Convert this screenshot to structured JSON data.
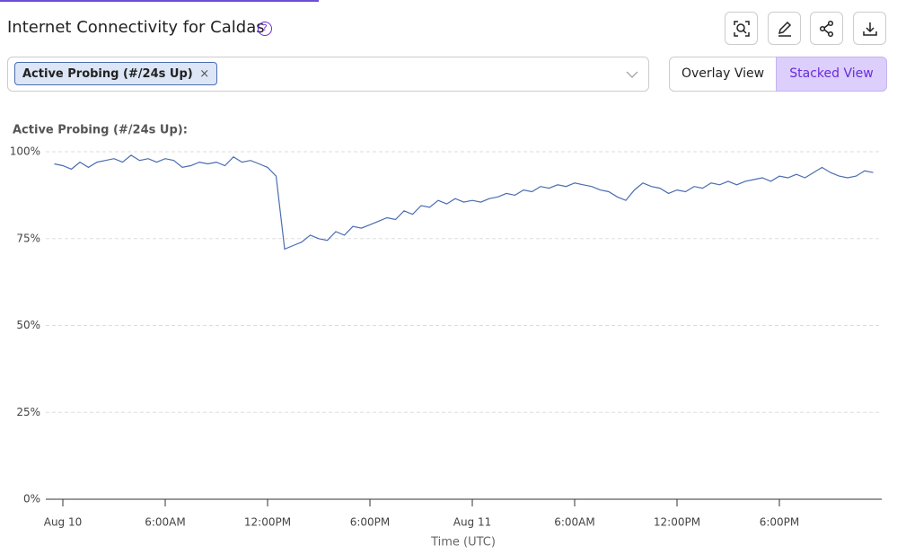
{
  "header": {
    "title": "Internet Connectivity for Caldas",
    "help": "?"
  },
  "filter": {
    "chip": "Active Probing (#/24s Up)",
    "remove": "×"
  },
  "views": [
    "Overlay View",
    "Stacked View"
  ],
  "chart_data": {
    "type": "line",
    "title": "Active Probing (#/24s Up):",
    "x_label": "Time (UTC)",
    "color": "#4a6db0",
    "x": [
      -0.5,
      0,
      0.5,
      1,
      1.5,
      2,
      2.5,
      3,
      3.5,
      4,
      4.5,
      5,
      5.5,
      6,
      6.5,
      7,
      7.5,
      8,
      8.5,
      9,
      9.5,
      10,
      10.5,
      11,
      11.5,
      12,
      12.5,
      13,
      13.5,
      14,
      14.5,
      15,
      15.5,
      16,
      16.5,
      17,
      17.5,
      18,
      18.5,
      19,
      19.5,
      20,
      20.5,
      21,
      21.5,
      22,
      22.5,
      23,
      23.5,
      24,
      24.5,
      25,
      25.5,
      26,
      26.5,
      27,
      27.5,
      28,
      28.5,
      29,
      29.5,
      30,
      30.5,
      31,
      31.5,
      32,
      32.5,
      33,
      33.5,
      34,
      34.5,
      35,
      35.5,
      36,
      36.5,
      37,
      37.5,
      38,
      38.5,
      39,
      39.5,
      40,
      40.5,
      41,
      41.5,
      42,
      42.5,
      43,
      43.5,
      44,
      44.5,
      45,
      45.5,
      46,
      46.5,
      47,
      47.5
    ],
    "values": [
      96.5,
      96,
      95,
      97,
      95.5,
      97,
      97.5,
      98,
      97,
      99,
      97.5,
      98,
      97,
      98,
      97.5,
      95.5,
      96,
      97,
      96.5,
      97,
      96,
      98.5,
      97,
      97.5,
      96.5,
      95.5,
      93,
      72,
      73,
      74,
      76,
      75,
      74.5,
      77,
      76,
      78.5,
      78,
      79,
      80,
      81,
      80.5,
      83,
      82,
      84.5,
      84,
      86,
      85,
      86.5,
      85.5,
      86,
      85.5,
      86.5,
      87,
      88,
      87.5,
      89,
      88.5,
      90,
      89.5,
      90.5,
      90,
      91,
      90.5,
      90,
      89,
      88.5,
      87,
      86,
      89,
      91,
      90,
      89.5,
      88,
      89,
      88.5,
      90,
      89.5,
      91,
      90.5,
      91.5,
      90.5,
      91.5,
      92,
      92.5,
      91.5,
      93,
      92.5,
      93.5,
      92.5,
      94,
      95.5,
      94,
      93,
      92.5,
      93,
      94.5,
      94
    ],
    "xlim": [
      -1,
      48
    ],
    "xticks": [
      {
        "value": 0,
        "label": "Aug 10"
      },
      {
        "value": 6,
        "label": "6:00AM"
      },
      {
        "value": 12,
        "label": "12:00PM"
      },
      {
        "value": 18,
        "label": "6:00PM"
      },
      {
        "value": 24,
        "label": "Aug 11"
      },
      {
        "value": 30,
        "label": "6:00AM"
      },
      {
        "value": 36,
        "label": "12:00PM"
      },
      {
        "value": 42,
        "label": "6:00PM"
      }
    ],
    "ylim": [
      0,
      100
    ],
    "yticks": [
      {
        "value": 0,
        "label": "0%"
      },
      {
        "value": 25,
        "label": "25%"
      },
      {
        "value": 50,
        "label": "50%"
      },
      {
        "value": 75,
        "label": "75%"
      },
      {
        "value": 100,
        "label": "100%"
      }
    ],
    "grid": true
  }
}
